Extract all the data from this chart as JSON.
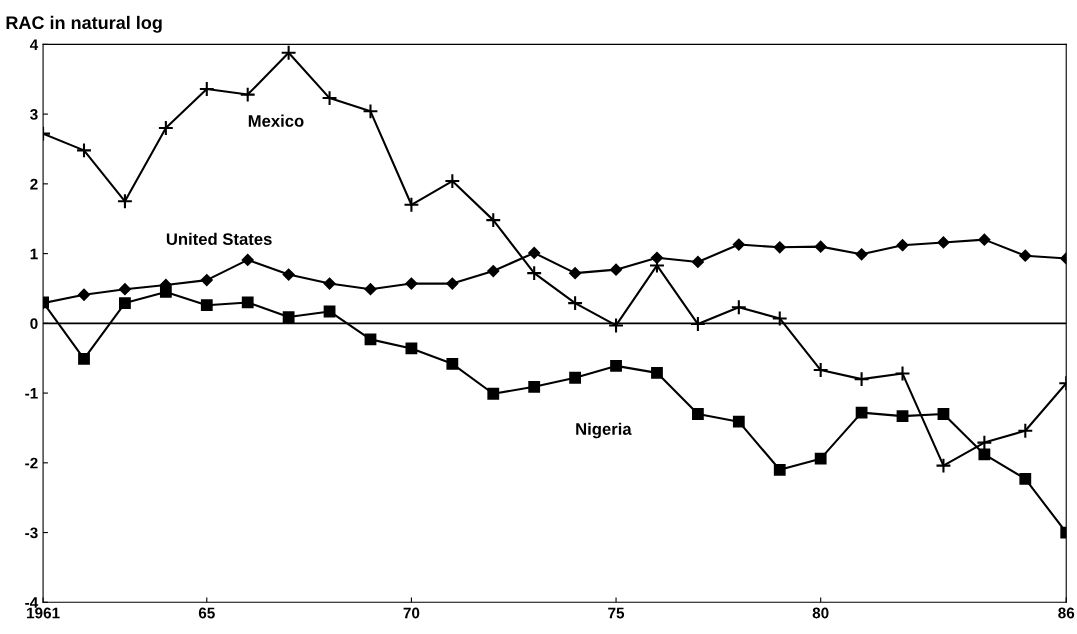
{
  "chart_data": {
    "type": "line",
    "ylabel": "RAC in natural log",
    "x": [
      1961,
      1962,
      1963,
      1964,
      1965,
      1966,
      1967,
      1968,
      1969,
      1970,
      1971,
      1972,
      1973,
      1974,
      1975,
      1976,
      1977,
      1978,
      1979,
      1980,
      1981,
      1982,
      1983,
      1984,
      1985,
      1986
    ],
    "series": [
      {
        "name": "Mexico",
        "color": "#000000",
        "marker": "cross",
        "values": [
          2.72,
          2.48,
          1.75,
          2.8,
          3.36,
          3.28,
          3.88,
          3.23,
          3.04,
          1.7,
          2.04,
          1.48,
          0.72,
          0.29,
          -0.03,
          0.83,
          -0.01,
          0.23,
          0.07,
          -0.67,
          -0.8,
          -0.72,
          -2.04,
          -1.71,
          -1.54,
          -0.86
        ]
      },
      {
        "name": "United States",
        "color": "#000000",
        "marker": "diamond",
        "values": [
          0.29,
          0.41,
          0.49,
          0.55,
          0.62,
          0.91,
          0.7,
          0.57,
          0.49,
          0.57,
          0.57,
          0.75,
          1.01,
          0.72,
          0.77,
          0.94,
          0.88,
          1.13,
          1.09,
          1.1,
          0.99,
          1.12,
          1.16,
          1.2,
          0.97,
          0.93
        ]
      },
      {
        "name": "Nigeria",
        "color": "#000000",
        "marker": "square",
        "values": [
          0.3,
          -0.51,
          0.29,
          0.45,
          0.26,
          0.3,
          0.09,
          0.17,
          -0.23,
          -0.36,
          -0.58,
          -1.01,
          -0.91,
          -0.78,
          -0.61,
          -0.71,
          -1.3,
          -1.41,
          -2.1,
          -1.94,
          -1.28,
          -1.33,
          -1.3,
          -1.88,
          -2.23,
          -3.0
        ]
      }
    ],
    "xlim": [
      1961,
      1986
    ],
    "xticks": [
      {
        "value": 1961,
        "label": "1961"
      },
      {
        "value": 1965,
        "label": "65"
      },
      {
        "value": 1970,
        "label": "70"
      },
      {
        "value": 1975,
        "label": "75"
      },
      {
        "value": 1980,
        "label": "80"
      },
      {
        "value": 1986,
        "label": "86"
      }
    ],
    "ylim": [
      -4,
      4
    ],
    "yticks": [
      -4,
      -3,
      -2,
      -1,
      0,
      1,
      2,
      3,
      4
    ],
    "ref_lines": [
      {
        "axis": "y",
        "value": 0,
        "color": "#000000"
      }
    ],
    "grid": false,
    "legend": false,
    "line_style": "solid"
  }
}
